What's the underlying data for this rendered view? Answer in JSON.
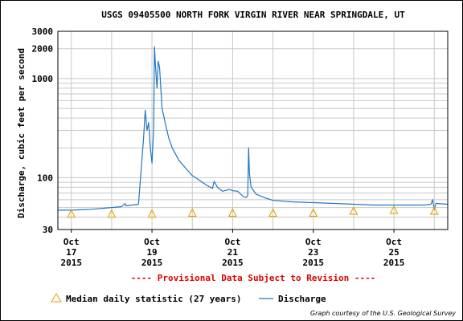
{
  "chart_data": {
    "type": "line",
    "title": "USGS 09405500 NORTH FORK VIRGIN RIVER NEAR SPRINGDALE, UT",
    "ylabel": "Discharge, cubic feet per second",
    "xlabel": "",
    "y_scale": "log",
    "ylim": [
      30,
      3000
    ],
    "xlim": [
      "2015-10-16T16:00",
      "2015-10-26T08:00"
    ],
    "y_ticks": [
      {
        "value": 30,
        "label": "30"
      },
      {
        "value": 100,
        "label": "100"
      },
      {
        "value": 1000,
        "label": "1000"
      },
      {
        "value": 2000,
        "label": "2000"
      },
      {
        "value": 3000,
        "label": "3000"
      }
    ],
    "x_ticks": [
      {
        "date": "2015-10-17",
        "month": "Oct",
        "day": "17",
        "year": "2015"
      },
      {
        "date": "2015-10-19",
        "month": "Oct",
        "day": "19",
        "year": "2015"
      },
      {
        "date": "2015-10-21",
        "month": "Oct",
        "day": "21",
        "year": "2015"
      },
      {
        "date": "2015-10-23",
        "month": "Oct",
        "day": "23",
        "year": "2015"
      },
      {
        "date": "2015-10-25",
        "month": "Oct",
        "day": "25",
        "year": "2015"
      }
    ],
    "grid": true,
    "series": [
      {
        "name": "Discharge",
        "color": "#1f77c4",
        "points": [
          [
            "2015-10-16T16:00",
            47
          ],
          [
            "2015-10-17T00:00",
            47
          ],
          [
            "2015-10-17T12:00",
            48
          ],
          [
            "2015-10-18T00:00",
            50
          ],
          [
            "2015-10-18T06:00",
            51
          ],
          [
            "2015-10-18T08:00",
            55
          ],
          [
            "2015-10-18T08:30",
            52
          ],
          [
            "2015-10-18T12:00",
            53
          ],
          [
            "2015-10-18T16:00",
            54
          ],
          [
            "2015-10-18T19:00",
            250
          ],
          [
            "2015-10-18T20:00",
            480
          ],
          [
            "2015-10-18T21:00",
            300
          ],
          [
            "2015-10-18T22:00",
            360
          ],
          [
            "2015-10-18T23:00",
            200
          ],
          [
            "2015-10-19T00:00",
            140
          ],
          [
            "2015-10-19T01:00",
            320
          ],
          [
            "2015-10-19T01:30",
            2100
          ],
          [
            "2015-10-19T02:00",
            1400
          ],
          [
            "2015-10-19T03:00",
            800
          ],
          [
            "2015-10-19T03:45",
            1500
          ],
          [
            "2015-10-19T04:30",
            1300
          ],
          [
            "2015-10-19T06:00",
            500
          ],
          [
            "2015-10-19T08:00",
            350
          ],
          [
            "2015-10-19T10:00",
            250
          ],
          [
            "2015-10-19T12:00",
            200
          ],
          [
            "2015-10-19T16:00",
            150
          ],
          [
            "2015-10-19T20:00",
            125
          ],
          [
            "2015-10-20T00:00",
            105
          ],
          [
            "2015-10-20T04:00",
            95
          ],
          [
            "2015-10-20T08:00",
            85
          ],
          [
            "2015-10-20T12:00",
            78
          ],
          [
            "2015-10-20T13:00",
            92
          ],
          [
            "2015-10-20T15:00",
            80
          ],
          [
            "2015-10-20T18:00",
            73
          ],
          [
            "2015-10-20T22:00",
            76
          ],
          [
            "2015-10-21T00:00",
            74
          ],
          [
            "2015-10-21T03:00",
            73
          ],
          [
            "2015-10-21T06:00",
            65
          ],
          [
            "2015-10-21T08:00",
            63
          ],
          [
            "2015-10-21T09:00",
            66
          ],
          [
            "2015-10-21T09:30",
            200
          ],
          [
            "2015-10-21T10:00",
            110
          ],
          [
            "2015-10-21T11:00",
            80
          ],
          [
            "2015-10-21T14:00",
            68
          ],
          [
            "2015-10-21T20:00",
            62
          ],
          [
            "2015-10-22T00:00",
            59
          ],
          [
            "2015-10-22T12:00",
            57
          ],
          [
            "2015-10-23T00:00",
            56
          ],
          [
            "2015-10-23T12:00",
            55
          ],
          [
            "2015-10-24T00:00",
            54
          ],
          [
            "2015-10-24T12:00",
            53
          ],
          [
            "2015-10-25T00:00",
            53
          ],
          [
            "2015-10-25T12:00",
            53
          ],
          [
            "2015-10-25T18:00",
            53
          ],
          [
            "2015-10-25T22:00",
            54
          ],
          [
            "2015-10-25T23:00",
            60
          ],
          [
            "2015-10-26T00:00",
            48
          ],
          [
            "2015-10-26T01:00",
            55
          ],
          [
            "2015-10-26T08:00",
            54
          ]
        ]
      },
      {
        "name": "Median daily statistic (27 years)",
        "color": "#e8a000",
        "marker": "triangle",
        "points": [
          [
            "2015-10-17T00:00",
            43
          ],
          [
            "2015-10-18T00:00",
            43
          ],
          [
            "2015-10-19T00:00",
            43
          ],
          [
            "2015-10-20T00:00",
            44
          ],
          [
            "2015-10-21T00:00",
            44
          ],
          [
            "2015-10-22T00:00",
            44
          ],
          [
            "2015-10-23T00:00",
            44
          ],
          [
            "2015-10-24T00:00",
            46
          ],
          [
            "2015-10-25T00:00",
            47
          ],
          [
            "2015-10-26T00:00",
            46
          ]
        ]
      }
    ],
    "legend": {
      "placement": "bottom"
    },
    "annotations": [
      "---- Provisional Data Subject to Revision ----"
    ],
    "credit": "Graph courtesy of the U.S. Geological Survey"
  }
}
